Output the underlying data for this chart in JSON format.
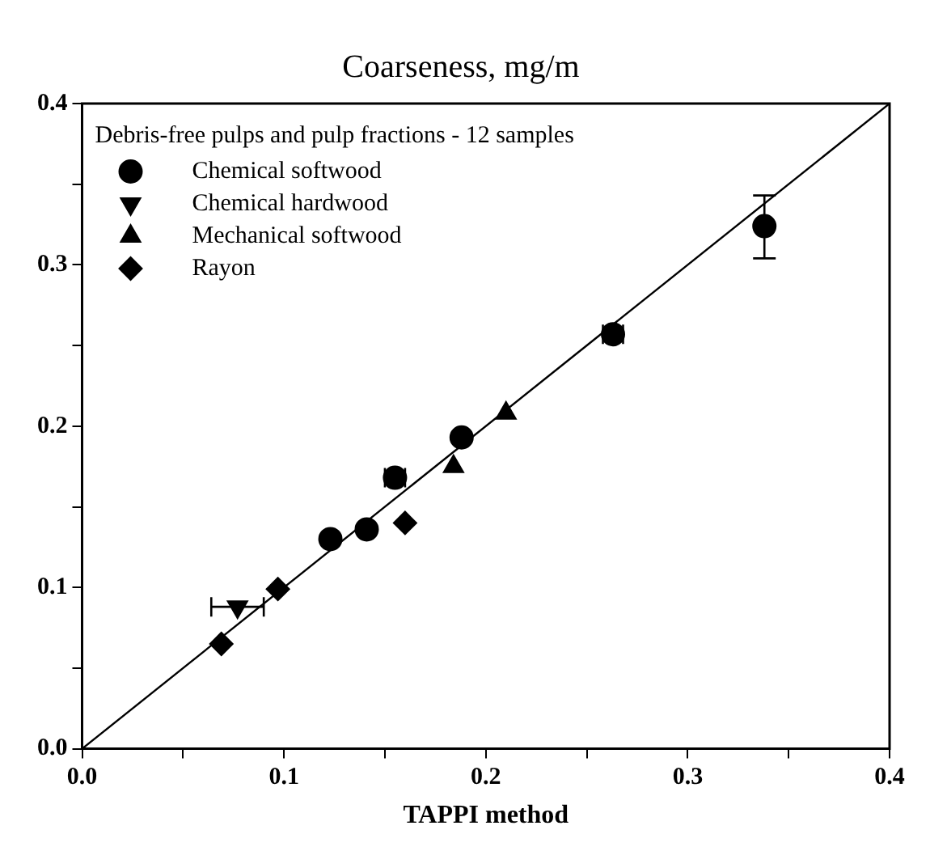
{
  "chart_data": {
    "type": "scatter",
    "title": "Coarseness, mg/m",
    "xlabel": "TAPPI method",
    "legend_title": "Debris-free pulps and pulp fractions - 12 samples",
    "legend": "top left",
    "grid": false,
    "xlim": [
      0,
      0.4
    ],
    "ylim": [
      0,
      0.4
    ],
    "xticks": [
      {
        "value": 0,
        "label": "0.0"
      },
      {
        "value": 0.05,
        "label": null
      },
      {
        "value": 0.1,
        "label": "0.1"
      },
      {
        "value": 0.15,
        "label": null
      },
      {
        "value": 0.2,
        "label": "0.2"
      },
      {
        "value": 0.25,
        "label": null
      },
      {
        "value": 0.3,
        "label": "0.3"
      },
      {
        "value": 0.35,
        "label": null
      },
      {
        "value": 0.4,
        "label": "0.4"
      }
    ],
    "yticks": [
      {
        "value": 0,
        "label": "0.0"
      },
      {
        "value": 0.05,
        "label": null
      },
      {
        "value": 0.1,
        "label": "0.1"
      },
      {
        "value": 0.15,
        "label": null
      },
      {
        "value": 0.2,
        "label": "0.2"
      },
      {
        "value": 0.25,
        "label": null
      },
      {
        "value": 0.3,
        "label": "0.3"
      },
      {
        "value": 0.35,
        "label": null
      },
      {
        "value": 0.4,
        "label": "0.4"
      }
    ],
    "series": [
      {
        "name": "Chemical softwood",
        "color": "#000000",
        "marker": "circle",
        "x": [
          0.338,
          0.263,
          0.188,
          0.155,
          0.141,
          0.123
        ],
        "values": [
          0.324,
          0.257,
          0.193,
          0.168,
          0.136,
          0.13
        ],
        "errors": [
          [
            0.304,
            0.343
          ],
          null,
          null,
          null,
          null,
          null
        ],
        "xerrors": [
          null,
          0.005,
          null,
          0.005,
          null,
          null
        ]
      },
      {
        "name": "Chemical hardwood",
        "color": "#000000",
        "marker": "triangle_down",
        "x": [
          0.077
        ],
        "values": [
          0.088
        ],
        "xerrors": [
          [
            0.064,
            0.09
          ]
        ]
      },
      {
        "name": "Mechanical softwood",
        "color": "#000000",
        "marker": "triangle",
        "x": [
          0.21,
          0.184
        ],
        "values": [
          0.208,
          0.175
        ]
      },
      {
        "name": "Rayon",
        "color": "#000000",
        "marker": "diamond",
        "x": [
          0.069,
          0.097,
          0.16
        ],
        "values": [
          0.065,
          0.099,
          0.14
        ]
      },
      {
        "type": "line",
        "color": "#000000",
        "marker": "none",
        "x": [
          0,
          0.4
        ],
        "values": [
          0,
          0.4
        ]
      }
    ]
  }
}
